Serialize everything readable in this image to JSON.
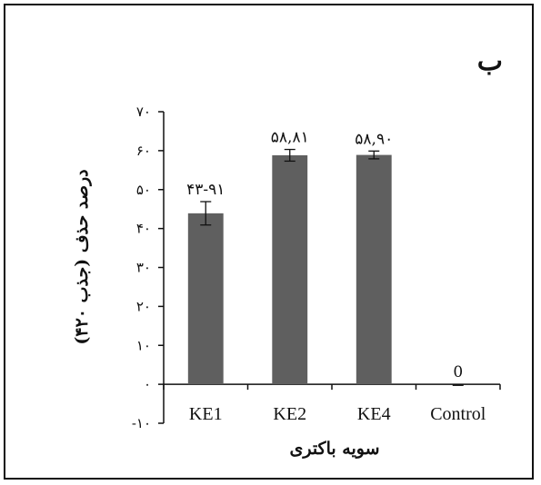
{
  "panel_label": "ب",
  "chart_data": {
    "type": "bar",
    "categories": [
      "KE1",
      "KE2",
      "KE4",
      "Control"
    ],
    "values": [
      43.91,
      58.81,
      58.9,
      0
    ],
    "errors": [
      3.0,
      1.5,
      1.0,
      0
    ],
    "data_labels": [
      "۴۳-۹۱",
      "۵۸,۸۱",
      "۵۸,۹۰",
      "0"
    ],
    "ylabel": "درصد حذف (جذب ۴۲۰)",
    "xlabel": "سویه باکتری",
    "ylim": [
      -10,
      70
    ],
    "yticks": [
      -10,
      0,
      10,
      20,
      30,
      40,
      50,
      60,
      70
    ],
    "ytick_labels": [
      "-۱۰",
      "۰",
      "۱۰",
      "۲۰",
      "۳۰",
      "۴۰",
      "۵۰",
      "۶۰",
      "۷۰"
    ],
    "bar_color": "#5f5f5f",
    "grid": false,
    "legend": "none"
  }
}
